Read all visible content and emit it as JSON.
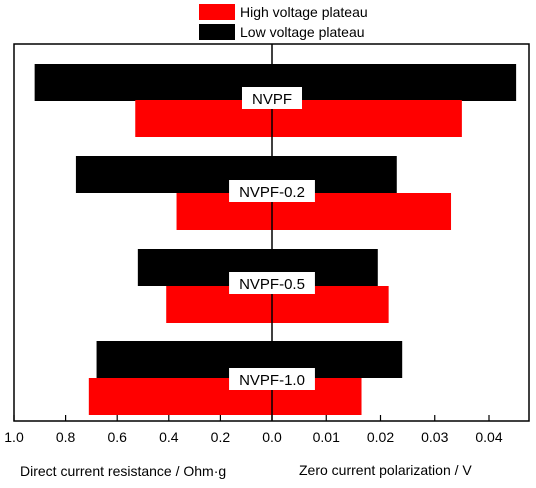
{
  "chart_data": {
    "type": "bar",
    "orientation": "horizontal",
    "layout": "butterfly",
    "categories": [
      "NVPF",
      "NVPF-0.2",
      "NVPF-0.5",
      "NVPF-1.0"
    ],
    "left_panel": {
      "xlabel": "Direct current resistance / Ohm·g",
      "xlim": [
        1.0,
        0.0
      ],
      "ticks": [
        "1.0",
        "0.8",
        "0.6",
        "0.4",
        "0.2",
        "0.0"
      ],
      "series": [
        {
          "name": "Low voltage plateau",
          "color": "#000000",
          "values": [
            0.92,
            0.76,
            0.52,
            0.68
          ]
        },
        {
          "name": "High voltage plateau",
          "color": "#ff0000",
          "values": [
            0.53,
            0.37,
            0.41,
            0.71
          ]
        }
      ]
    },
    "right_panel": {
      "xlabel": "Zero current polarization / V",
      "xlim": [
        0.0,
        0.046
      ],
      "ticks": [
        "0.00",
        "0.01",
        "0.02",
        "0.03",
        "0.04"
      ],
      "series": [
        {
          "name": "Low voltage plateau",
          "color": "#000000",
          "values": [
            0.045,
            0.023,
            0.0195,
            0.024
          ]
        },
        {
          "name": "High voltage plateau",
          "color": "#ff0000",
          "values": [
            0.035,
            0.033,
            0.0215,
            0.0165
          ]
        }
      ]
    },
    "legend": {
      "placement": "top-center",
      "items": [
        {
          "label": "High voltage plateau",
          "color": "#ff0000"
        },
        {
          "label": "Low voltage plateau",
          "color": "#000000"
        }
      ]
    },
    "grid": false
  }
}
